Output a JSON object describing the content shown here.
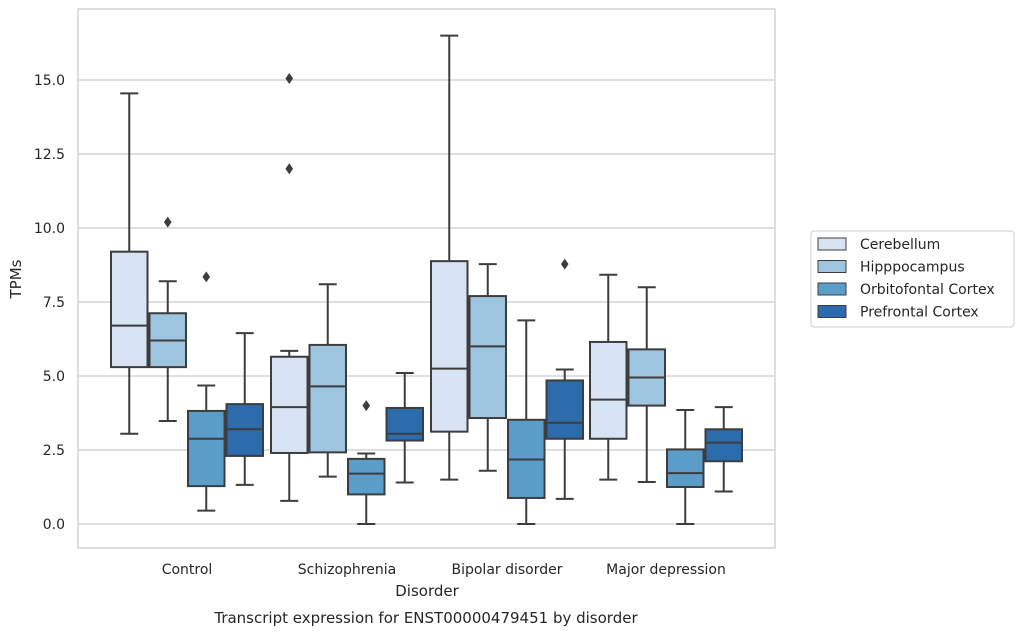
{
  "chart_data": {
    "type": "box",
    "title": "Transcript expression for ENST00000479451 by disorder",
    "xlabel": "Disorder",
    "ylabel": "TPMs",
    "ylim": [
      -0.8,
      17.8
    ],
    "yticks": [
      0.0,
      2.5,
      5.0,
      7.5,
      10.0,
      12.5,
      15.0
    ],
    "ytick_labels": [
      "0.0",
      "2.5",
      "5.0",
      "7.5",
      "10.0",
      "12.5",
      "15.0"
    ],
    "categories": [
      "Control",
      "Schizophrenia",
      "Bipolar disorder",
      "Major depression"
    ],
    "grid": "horizontal",
    "legend_position": "right",
    "series": [
      {
        "name": "Cerebellum",
        "color": "#d6e4f3",
        "boxes": [
          {
            "min": 3.05,
            "q1": 5.3,
            "median": 6.7,
            "q3": 9.2,
            "max": 14.55,
            "outliers": []
          },
          {
            "min": 0.78,
            "q1": 2.4,
            "median": 3.95,
            "q3": 5.65,
            "max": 5.85,
            "outliers": [
              12.0,
              15.05
            ]
          },
          {
            "min": 1.5,
            "q1": 3.12,
            "median": 5.25,
            "q3": 8.88,
            "max": 16.5,
            "outliers": []
          },
          {
            "min": 1.5,
            "q1": 2.88,
            "median": 4.2,
            "q3": 6.15,
            "max": 8.42,
            "outliers": []
          }
        ]
      },
      {
        "name": "Hipppocampus",
        "color": "#9dc5df",
        "boxes": [
          {
            "min": 3.48,
            "q1": 5.3,
            "median": 6.2,
            "q3": 7.12,
            "max": 8.2,
            "outliers": [
              10.2
            ]
          },
          {
            "min": 1.6,
            "q1": 2.42,
            "median": 4.65,
            "q3": 6.05,
            "max": 8.1,
            "outliers": []
          },
          {
            "min": 1.8,
            "q1": 3.58,
            "median": 6.0,
            "q3": 7.7,
            "max": 8.78,
            "outliers": []
          },
          {
            "min": 1.42,
            "q1": 4.0,
            "median": 4.95,
            "q3": 5.9,
            "max": 8.0,
            "outliers": []
          }
        ]
      },
      {
        "name": "Orbitofontal Cortex",
        "color": "#5a9dc9",
        "boxes": [
          {
            "min": 0.45,
            "q1": 1.28,
            "median": 2.88,
            "q3": 3.82,
            "max": 4.68,
            "outliers": [
              8.35
            ]
          },
          {
            "min": 0.0,
            "q1": 1.0,
            "median": 1.7,
            "q3": 2.2,
            "max": 2.38,
            "outliers": [
              4.0
            ]
          },
          {
            "min": 0.0,
            "q1": 0.88,
            "median": 2.18,
            "q3": 3.52,
            "max": 6.88,
            "outliers": []
          },
          {
            "min": 0.0,
            "q1": 1.25,
            "median": 1.72,
            "q3": 2.52,
            "max": 3.85,
            "outliers": []
          }
        ]
      },
      {
        "name": "Prefrontal Cortex",
        "color": "#2c6cad",
        "boxes": [
          {
            "min": 1.32,
            "q1": 2.3,
            "median": 3.2,
            "q3": 4.05,
            "max": 6.45,
            "outliers": []
          },
          {
            "min": 1.4,
            "q1": 2.82,
            "median": 3.05,
            "q3": 3.92,
            "max": 5.1,
            "outliers": []
          },
          {
            "min": 0.85,
            "q1": 2.88,
            "median": 3.42,
            "q3": 4.85,
            "max": 5.22,
            "outliers": [
              8.78
            ]
          },
          {
            "min": 1.1,
            "q1": 2.12,
            "median": 2.75,
            "q3": 3.2,
            "max": 3.95,
            "outliers": []
          }
        ]
      }
    ]
  }
}
